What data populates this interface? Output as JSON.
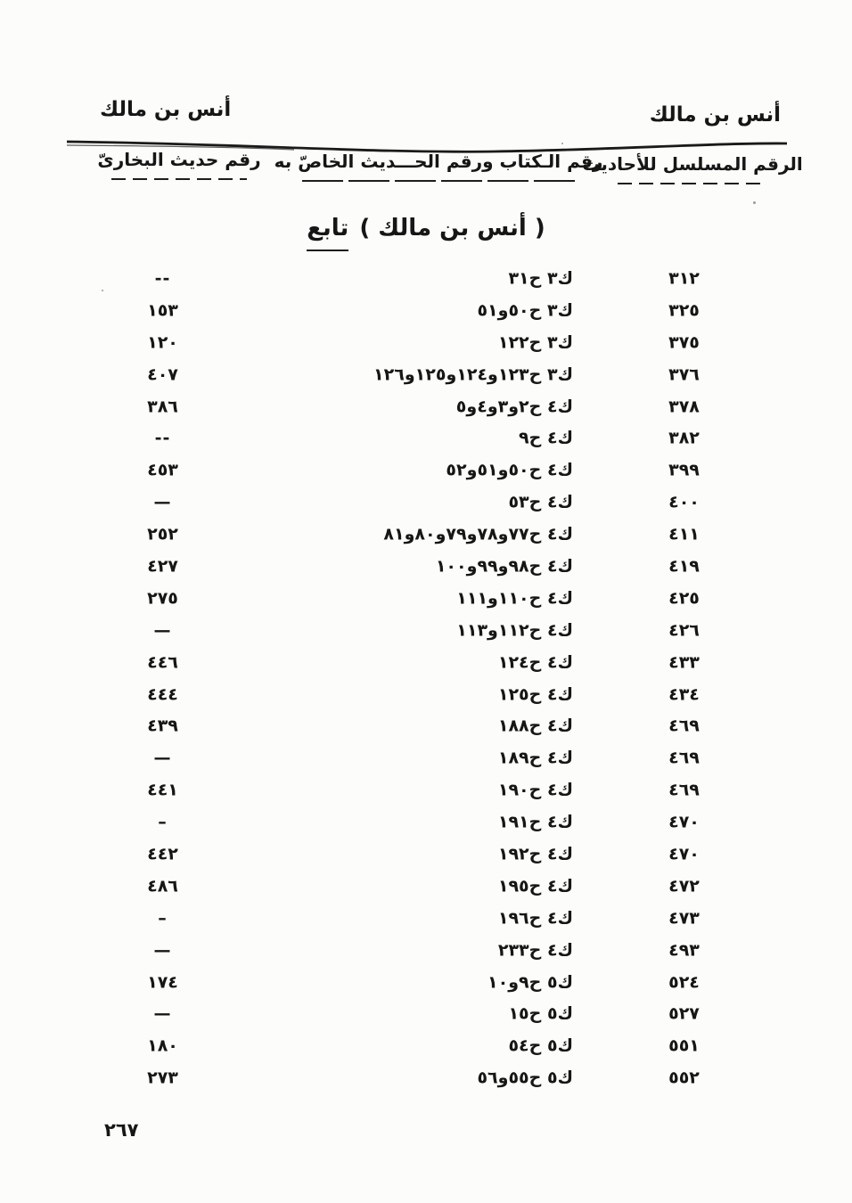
{
  "page": {
    "running_head_left": "أنس بن مالك",
    "running_head_right": "أنس بن مالك",
    "page_number": "٢٦٧"
  },
  "columns": {
    "bukhari_header": "رقم حديث البخارىّ",
    "book_header": "رقم الـكتاب ورقم الحـــديث الخاصّ به",
    "serial_header": "الرقم المسلسل للأحاديث"
  },
  "section": {
    "name": "( أنس بن مالك )",
    "continued": "تابع"
  },
  "table": {
    "rows": [
      {
        "serial": "٣١٢",
        "book_hadith": "ك٣ ح٣١",
        "bukhari": "--"
      },
      {
        "serial": "٣٢٥",
        "book_hadith": "ك٣ ح٥٠و٥١",
        "bukhari": "١٥٣"
      },
      {
        "serial": "٣٧٥",
        "book_hadith": "ك٣ ح١٢٢",
        "bukhari": "١٢٠"
      },
      {
        "serial": "٣٧٦",
        "book_hadith": "ك٣ ح١٢٣و١٢٤و١٢٥و١٢٦",
        "bukhari": "٤٠٧"
      },
      {
        "serial": "٣٧٨",
        "book_hadith": "ك٤ ح٢و٣و٤و٥",
        "bukhari": "٣٨٦"
      },
      {
        "serial": "٣٨٢",
        "book_hadith": "ك٤ ح٩",
        "bukhari": "--"
      },
      {
        "serial": "٣٩٩",
        "book_hadith": "ك٤ ح٥٠و٥١و٥٢",
        "bukhari": "٤٥٣"
      },
      {
        "serial": "٤٠٠",
        "book_hadith": "ك٤ ح٥٣",
        "bukhari": "—"
      },
      {
        "serial": "٤١١",
        "book_hadith": "ك٤ ح٧٧و٧٨و٧٩و٨٠و٨١",
        "bukhari": "٢٥٢"
      },
      {
        "serial": "٤١٩",
        "book_hadith": "ك٤ ح٩٨و٩٩و١٠٠",
        "bukhari": "٤٢٧"
      },
      {
        "serial": "٤٢٥",
        "book_hadith": "ك٤ ح١١٠و١١١",
        "bukhari": "٢٧٥"
      },
      {
        "serial": "٤٢٦",
        "book_hadith": "ك٤ ح١١٢و١١٣",
        "bukhari": "—"
      },
      {
        "serial": "٤٣٣",
        "book_hadith": "ك٤ ح١٢٤",
        "bukhari": "٤٤٦"
      },
      {
        "serial": "٤٣٤",
        "book_hadith": "ك٤ ح١٢٥",
        "bukhari": "٤٤٤"
      },
      {
        "serial": "٤٦٩",
        "book_hadith": "ك٤ ح١٨٨",
        "bukhari": "٤٣٩"
      },
      {
        "serial": "٤٦٩",
        "book_hadith": "ك٤ ح١٨٩",
        "bukhari": "—"
      },
      {
        "serial": "٤٦٩",
        "book_hadith": "ك٤ ح١٩٠",
        "bukhari": "٤٤١"
      },
      {
        "serial": "٤٧٠",
        "book_hadith": "ك٤ ح١٩١",
        "bukhari": "–"
      },
      {
        "serial": "٤٧٠",
        "book_hadith": "ك٤ ح١٩٢",
        "bukhari": "٤٤٢"
      },
      {
        "serial": "٤٧٢",
        "book_hadith": "ك٤ ح١٩٥",
        "bukhari": "٤٨٦"
      },
      {
        "serial": "٤٧٣",
        "book_hadith": "ك٤ ح١٩٦",
        "bukhari": "–"
      },
      {
        "serial": "٤٩٣",
        "book_hadith": "ك٤ ح٢٣٣",
        "bukhari": "—"
      },
      {
        "serial": "٥٢٤",
        "book_hadith": "ك٥ ح٩و١٠",
        "bukhari": "١٧٤"
      },
      {
        "serial": "٥٢٧",
        "book_hadith": "ك٥ ح١٥",
        "bukhari": "—"
      },
      {
        "serial": "٥٥١",
        "book_hadith": "ك٥ ح٥٤",
        "bukhari": "١٨٠"
      },
      {
        "serial": "٥٥٢",
        "book_hadith": "ك٥ ح٥٥و٥٦",
        "bukhari": "٢٧٣"
      }
    ]
  }
}
